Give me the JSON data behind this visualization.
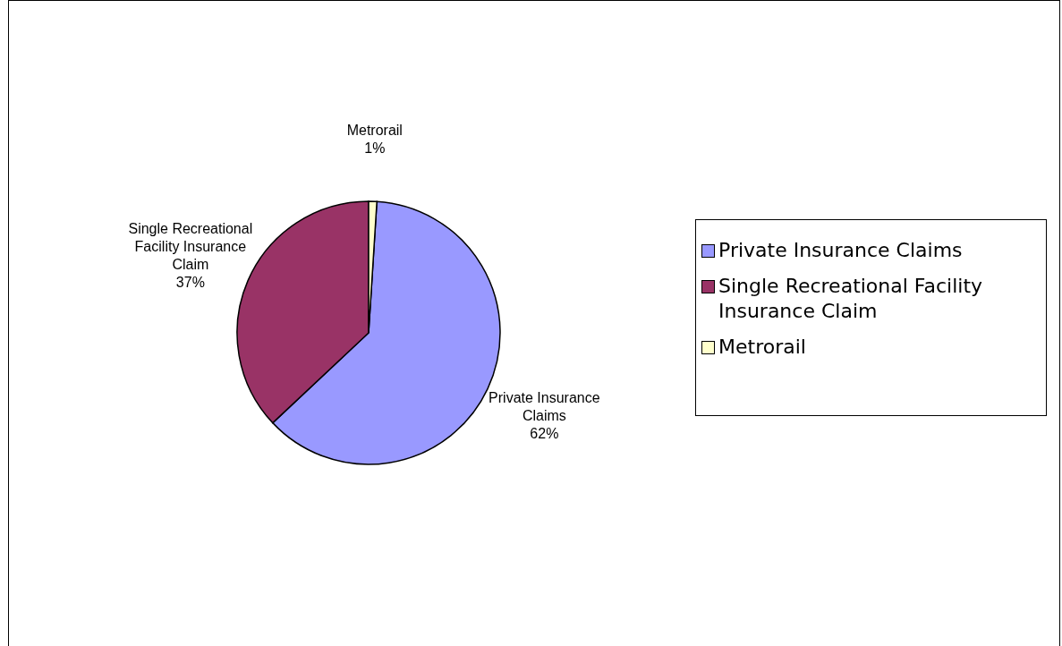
{
  "chart_data": {
    "type": "pie",
    "categories": [
      "Private Insurance Claims",
      "Single Recreational Facility Insurance Claim",
      "Metrorail"
    ],
    "values": [
      62,
      37,
      1
    ],
    "colors": [
      "#9999ff",
      "#993366",
      "#ffffcc"
    ],
    "value_labels": [
      "62%",
      "37%",
      "1%"
    ],
    "legend": "right"
  }
}
